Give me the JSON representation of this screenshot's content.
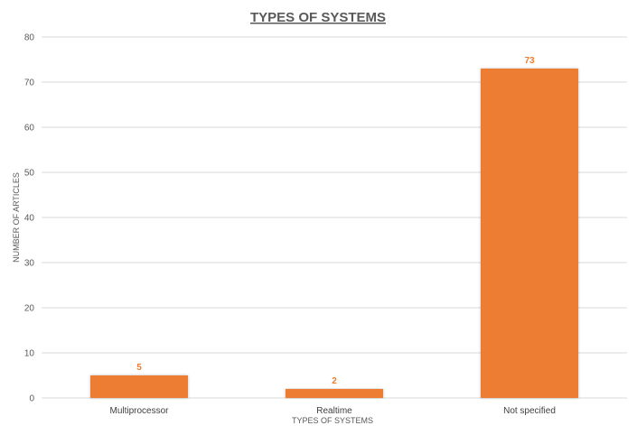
{
  "chart_data": {
    "type": "bar",
    "title": "TYPES OF SYSTEMS",
    "xlabel": "TYPES OF SYSTEMS",
    "ylabel": "NUMBER OF ARTICLES",
    "categories": [
      "Multiprocessor",
      "Realtime",
      "Not specified"
    ],
    "values": [
      5,
      2,
      73
    ],
    "ylim": [
      0,
      80
    ],
    "yticks": [
      0,
      10,
      20,
      30,
      40,
      50,
      60,
      70,
      80
    ],
    "data_labels": [
      "5",
      "2",
      "73"
    ],
    "grid": true,
    "legend": "none",
    "bar_color": "#ed7d31",
    "grid_color": "#d9d9d9"
  }
}
